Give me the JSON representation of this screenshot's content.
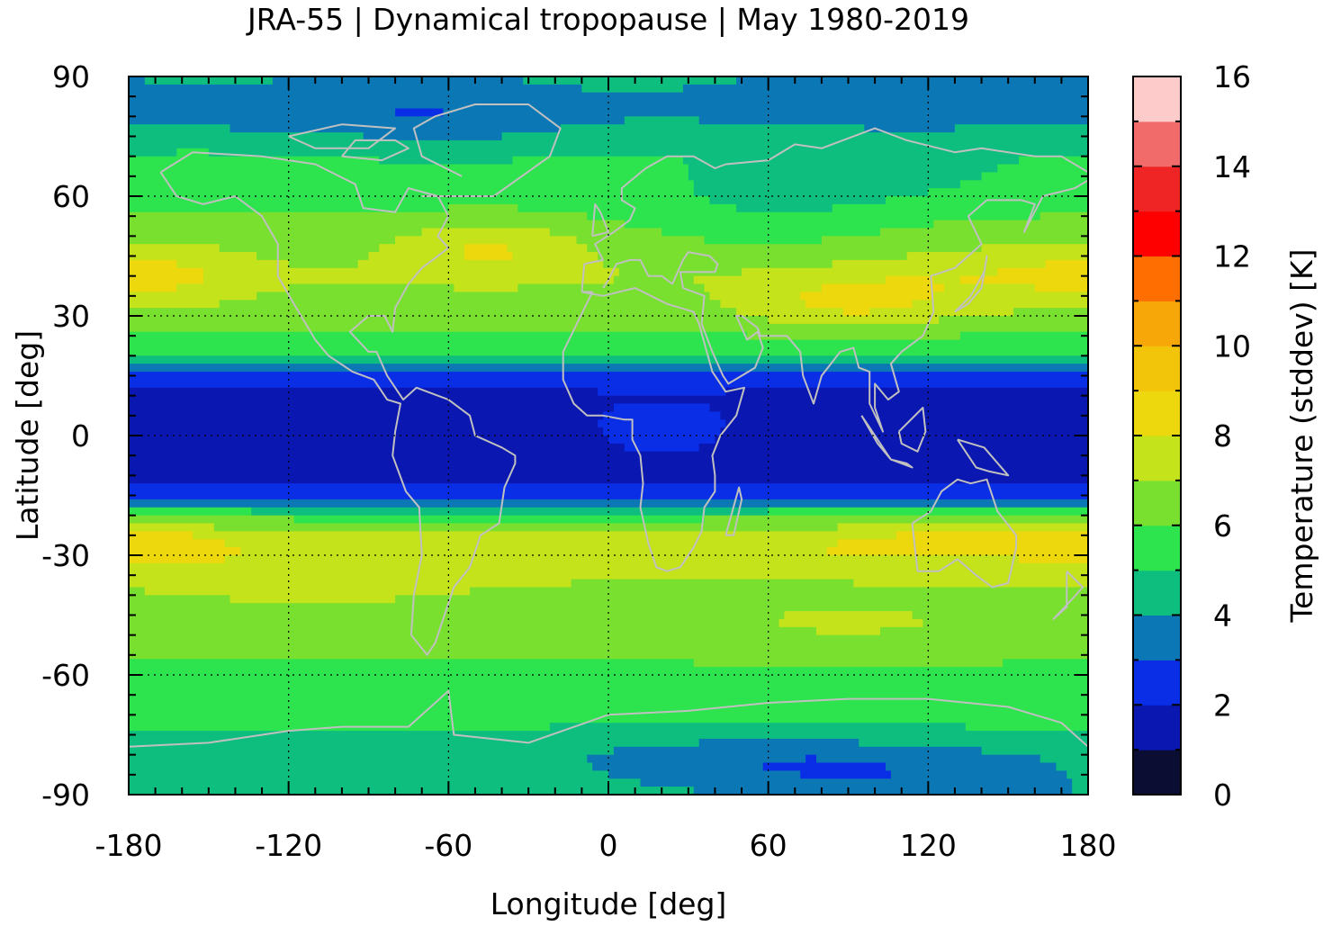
{
  "chart_data": {
    "type": "heatmap",
    "title": "JRA-55 | Dynamical tropopause | May 1980-2019",
    "xlabel": "Longitude [deg]",
    "ylabel": "Latitude [deg]",
    "colorbar_label": "Temperature (stddev) [K]",
    "xlim": [
      -180,
      180
    ],
    "ylim": [
      -90,
      90
    ],
    "zlim": [
      0,
      16
    ],
    "x_ticks": [
      -180,
      -120,
      -60,
      0,
      60,
      120,
      180
    ],
    "x_tick_labels": [
      "-180",
      "-120",
      "-60",
      "0",
      "60",
      "120",
      "180"
    ],
    "y_ticks": [
      -90,
      -60,
      -30,
      0,
      30,
      60,
      90
    ],
    "y_tick_labels": [
      "-90",
      "-60",
      "-30",
      "0",
      "30",
      "60",
      "90"
    ],
    "colorbar_ticks": [
      0,
      2,
      4,
      6,
      8,
      10,
      12,
      14,
      16
    ],
    "colorbar_tick_labels": [
      "0",
      "2",
      "4",
      "6",
      "8",
      "10",
      "12",
      "14",
      "16"
    ],
    "grid": true,
    "colormap": [
      {
        "range": [
          0,
          1
        ],
        "color": "#0c0d33"
      },
      {
        "range": [
          1,
          2
        ],
        "color": "#0a17b0"
      },
      {
        "range": [
          2,
          3
        ],
        "color": "#0a2ee6"
      },
      {
        "range": [
          3,
          4
        ],
        "color": "#0b78b5"
      },
      {
        "range": [
          4,
          5
        ],
        "color": "#0dbe7f"
      },
      {
        "range": [
          5,
          6
        ],
        "color": "#2de34e"
      },
      {
        "range": [
          6,
          7
        ],
        "color": "#79e02f"
      },
      {
        "range": [
          7,
          8
        ],
        "color": "#c5e31a"
      },
      {
        "range": [
          8,
          9
        ],
        "color": "#ecd80d"
      },
      {
        "range": [
          9,
          10
        ],
        "color": "#f2c40a"
      },
      {
        "range": [
          10,
          11
        ],
        "color": "#f7a707"
      },
      {
        "range": [
          11,
          12
        ],
        "color": "#fe6e00"
      },
      {
        "range": [
          12,
          13
        ],
        "color": "#ff0000"
      },
      {
        "range": [
          13,
          14
        ],
        "color": "#ef2424"
      },
      {
        "range": [
          14,
          15
        ],
        "color": "#f26b6b"
      },
      {
        "range": [
          15,
          16
        ],
        "color": "#fecbcb"
      }
    ],
    "zonal_profile": {
      "lat": [
        90,
        80,
        70,
        60,
        50,
        40,
        30,
        20,
        15,
        10,
        0,
        -10,
        -15,
        -20,
        -25,
        -30,
        -40,
        -50,
        -60,
        -70,
        -80,
        -90
      ],
      "value": [
        4.4,
        4.2,
        5.2,
        5.6,
        6.4,
        7.0,
        6.4,
        5.2,
        2.6,
        1.7,
        1.6,
        1.7,
        2.4,
        5.6,
        7.4,
        7.6,
        6.6,
        6.2,
        5.8,
        5.4,
        4.4,
        4.5
      ]
    },
    "annotations": {
      "coastlines": true,
      "coastline_color": "#c0c0c0"
    }
  }
}
